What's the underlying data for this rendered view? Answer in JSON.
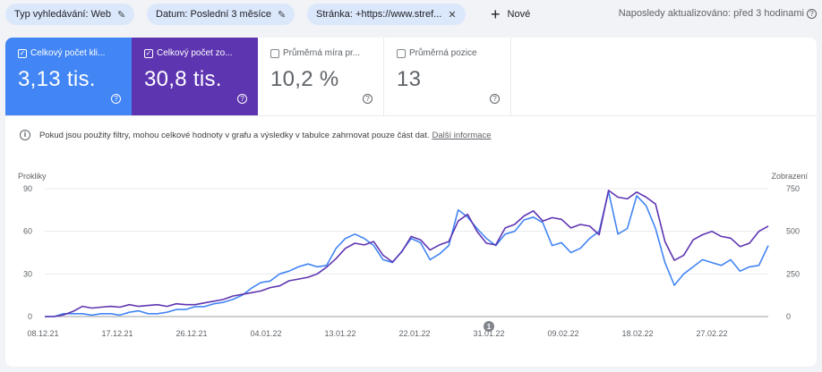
{
  "filters": {
    "chips": [
      {
        "label": "Typ vyhledávání: Web",
        "icon": "edit-icon"
      },
      {
        "label": "Datum: Poslední 3 měsíce",
        "icon": "edit-icon"
      },
      {
        "label": "Stránka: +https://www.stref...",
        "icon": "close-icon"
      }
    ],
    "new_label": "Nové",
    "updated": "Naposledy aktualizováno: před 3 hodinami"
  },
  "metrics": [
    {
      "label": "Celkový počet kli...",
      "value": "3,13 tis.",
      "checked": true,
      "color": "#4285f4"
    },
    {
      "label": "Celkový počet zo...",
      "value": "30,8 tis.",
      "checked": true,
      "color": "#5e35b1"
    },
    {
      "label": "Průměrná míra pr...",
      "value": "10,2 %",
      "checked": false
    },
    {
      "label": "Průměrná pozice",
      "value": "13",
      "checked": false
    }
  ],
  "notice": {
    "text": "Pokud jsou použity filtry, mohou celkové hodnoty v grafu a výsledky v tabulce zahrnovat pouze část dat.",
    "link": "Další informace"
  },
  "annotation_marker": "1",
  "chart_data": {
    "type": "line",
    "left_axis_label": "Prokliky",
    "right_axis_label": "Zobrazení",
    "left_ticks": [
      "90",
      "60",
      "30",
      "0"
    ],
    "right_ticks": [
      "750",
      "500",
      "250",
      "0"
    ],
    "ylim_left": [
      0,
      90
    ],
    "ylim_right": [
      0,
      750
    ],
    "x_tick_labels": [
      "08.12.21",
      "17.12.21",
      "26.12.21",
      "04.01.22",
      "13.01.22",
      "22.01.22",
      "31.01.22",
      "09.02.22",
      "18.02.22",
      "27.02.22"
    ],
    "series": [
      {
        "name": "Celkový počet kli...",
        "axis": "left",
        "color": "#4285f4",
        "values": [
          0,
          0,
          2,
          2,
          2,
          1,
          2,
          2,
          1,
          3,
          4,
          2,
          2,
          3,
          5,
          5,
          7,
          7,
          9,
          10,
          12,
          15,
          20,
          24,
          25,
          30,
          32,
          35,
          37,
          35,
          36,
          48,
          55,
          58,
          55,
          50,
          40,
          38,
          46,
          55,
          52,
          40,
          44,
          50,
          75,
          70,
          62,
          55,
          50,
          58,
          60,
          68,
          70,
          66,
          50,
          52,
          45,
          48,
          55,
          60,
          88,
          58,
          62,
          85,
          78,
          62,
          38,
          22,
          30,
          35,
          40,
          38,
          36,
          40,
          32,
          35,
          36,
          50
        ]
      },
      {
        "name": "Celkový počet zo...",
        "axis": "right",
        "color": "#5e35b1",
        "values": [
          0,
          0,
          10,
          30,
          60,
          50,
          55,
          60,
          55,
          70,
          60,
          65,
          70,
          60,
          75,
          70,
          70,
          80,
          90,
          100,
          120,
          130,
          140,
          150,
          170,
          180,
          210,
          220,
          230,
          250,
          290,
          340,
          400,
          430,
          420,
          440,
          360,
          320,
          380,
          470,
          450,
          390,
          420,
          440,
          560,
          600,
          500,
          430,
          420,
          520,
          540,
          590,
          620,
          560,
          580,
          570,
          520,
          540,
          530,
          480,
          740,
          700,
          690,
          730,
          700,
          660,
          440,
          330,
          360,
          450,
          480,
          500,
          470,
          460,
          410,
          430,
          500,
          530
        ]
      }
    ],
    "annotation": {
      "label": "1",
      "x_label": "31.01.22"
    }
  }
}
